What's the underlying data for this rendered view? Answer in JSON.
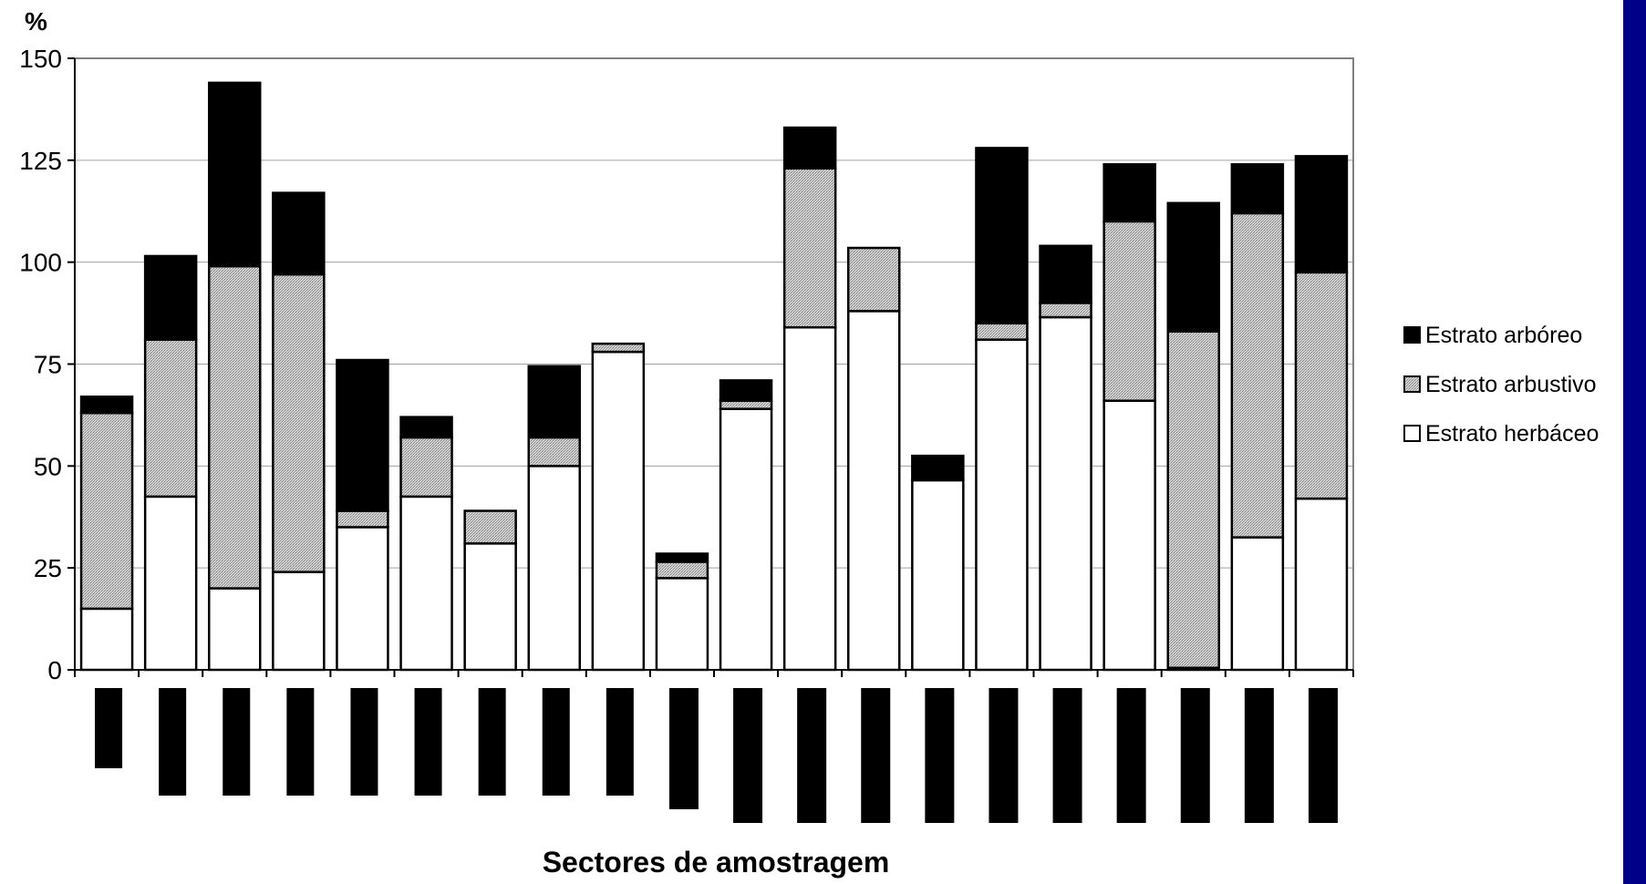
{
  "chart_data": {
    "type": "bar",
    "stacked": true,
    "title": "",
    "ylabel": "%",
    "xlabel": "Sectores de amostragem",
    "ylim": [
      0,
      150
    ],
    "yticks": [
      0,
      25,
      50,
      75,
      100,
      125,
      150
    ],
    "grid": true,
    "legend_position": "right",
    "categories": [
      "",
      "",
      "",
      "",
      "",
      "",
      "",
      "",
      "",
      "",
      "",
      "",
      "",
      "",
      "",
      "",
      "",
      "",
      "",
      ""
    ],
    "series": [
      {
        "name": "Estrato herbáceo",
        "color": "#ffffff",
        "pattern": "none",
        "values": [
          15,
          42.5,
          20,
          24,
          35,
          42.5,
          31,
          50,
          78,
          22.5,
          64,
          84,
          88,
          46.5,
          81,
          86.5,
          66,
          0.5,
          32.5,
          42
        ]
      },
      {
        "name": "Estrato arbustivo",
        "color": "#c8c8c8",
        "pattern": "stipple",
        "values": [
          48,
          38.5,
          79,
          73,
          4,
          14.5,
          8,
          7,
          2,
          4,
          2,
          39,
          15.5,
          0,
          4,
          3.5,
          44,
          82.5,
          79.5,
          55.5
        ]
      },
      {
        "name": "Estrato arbóreo",
        "color": "#000000",
        "pattern": "none",
        "values": [
          4,
          20.5,
          45,
          20,
          37,
          5,
          0,
          17.5,
          0,
          2,
          5,
          10,
          0,
          6,
          43,
          14,
          14,
          31.5,
          12,
          28.5
        ]
      }
    ]
  }
}
